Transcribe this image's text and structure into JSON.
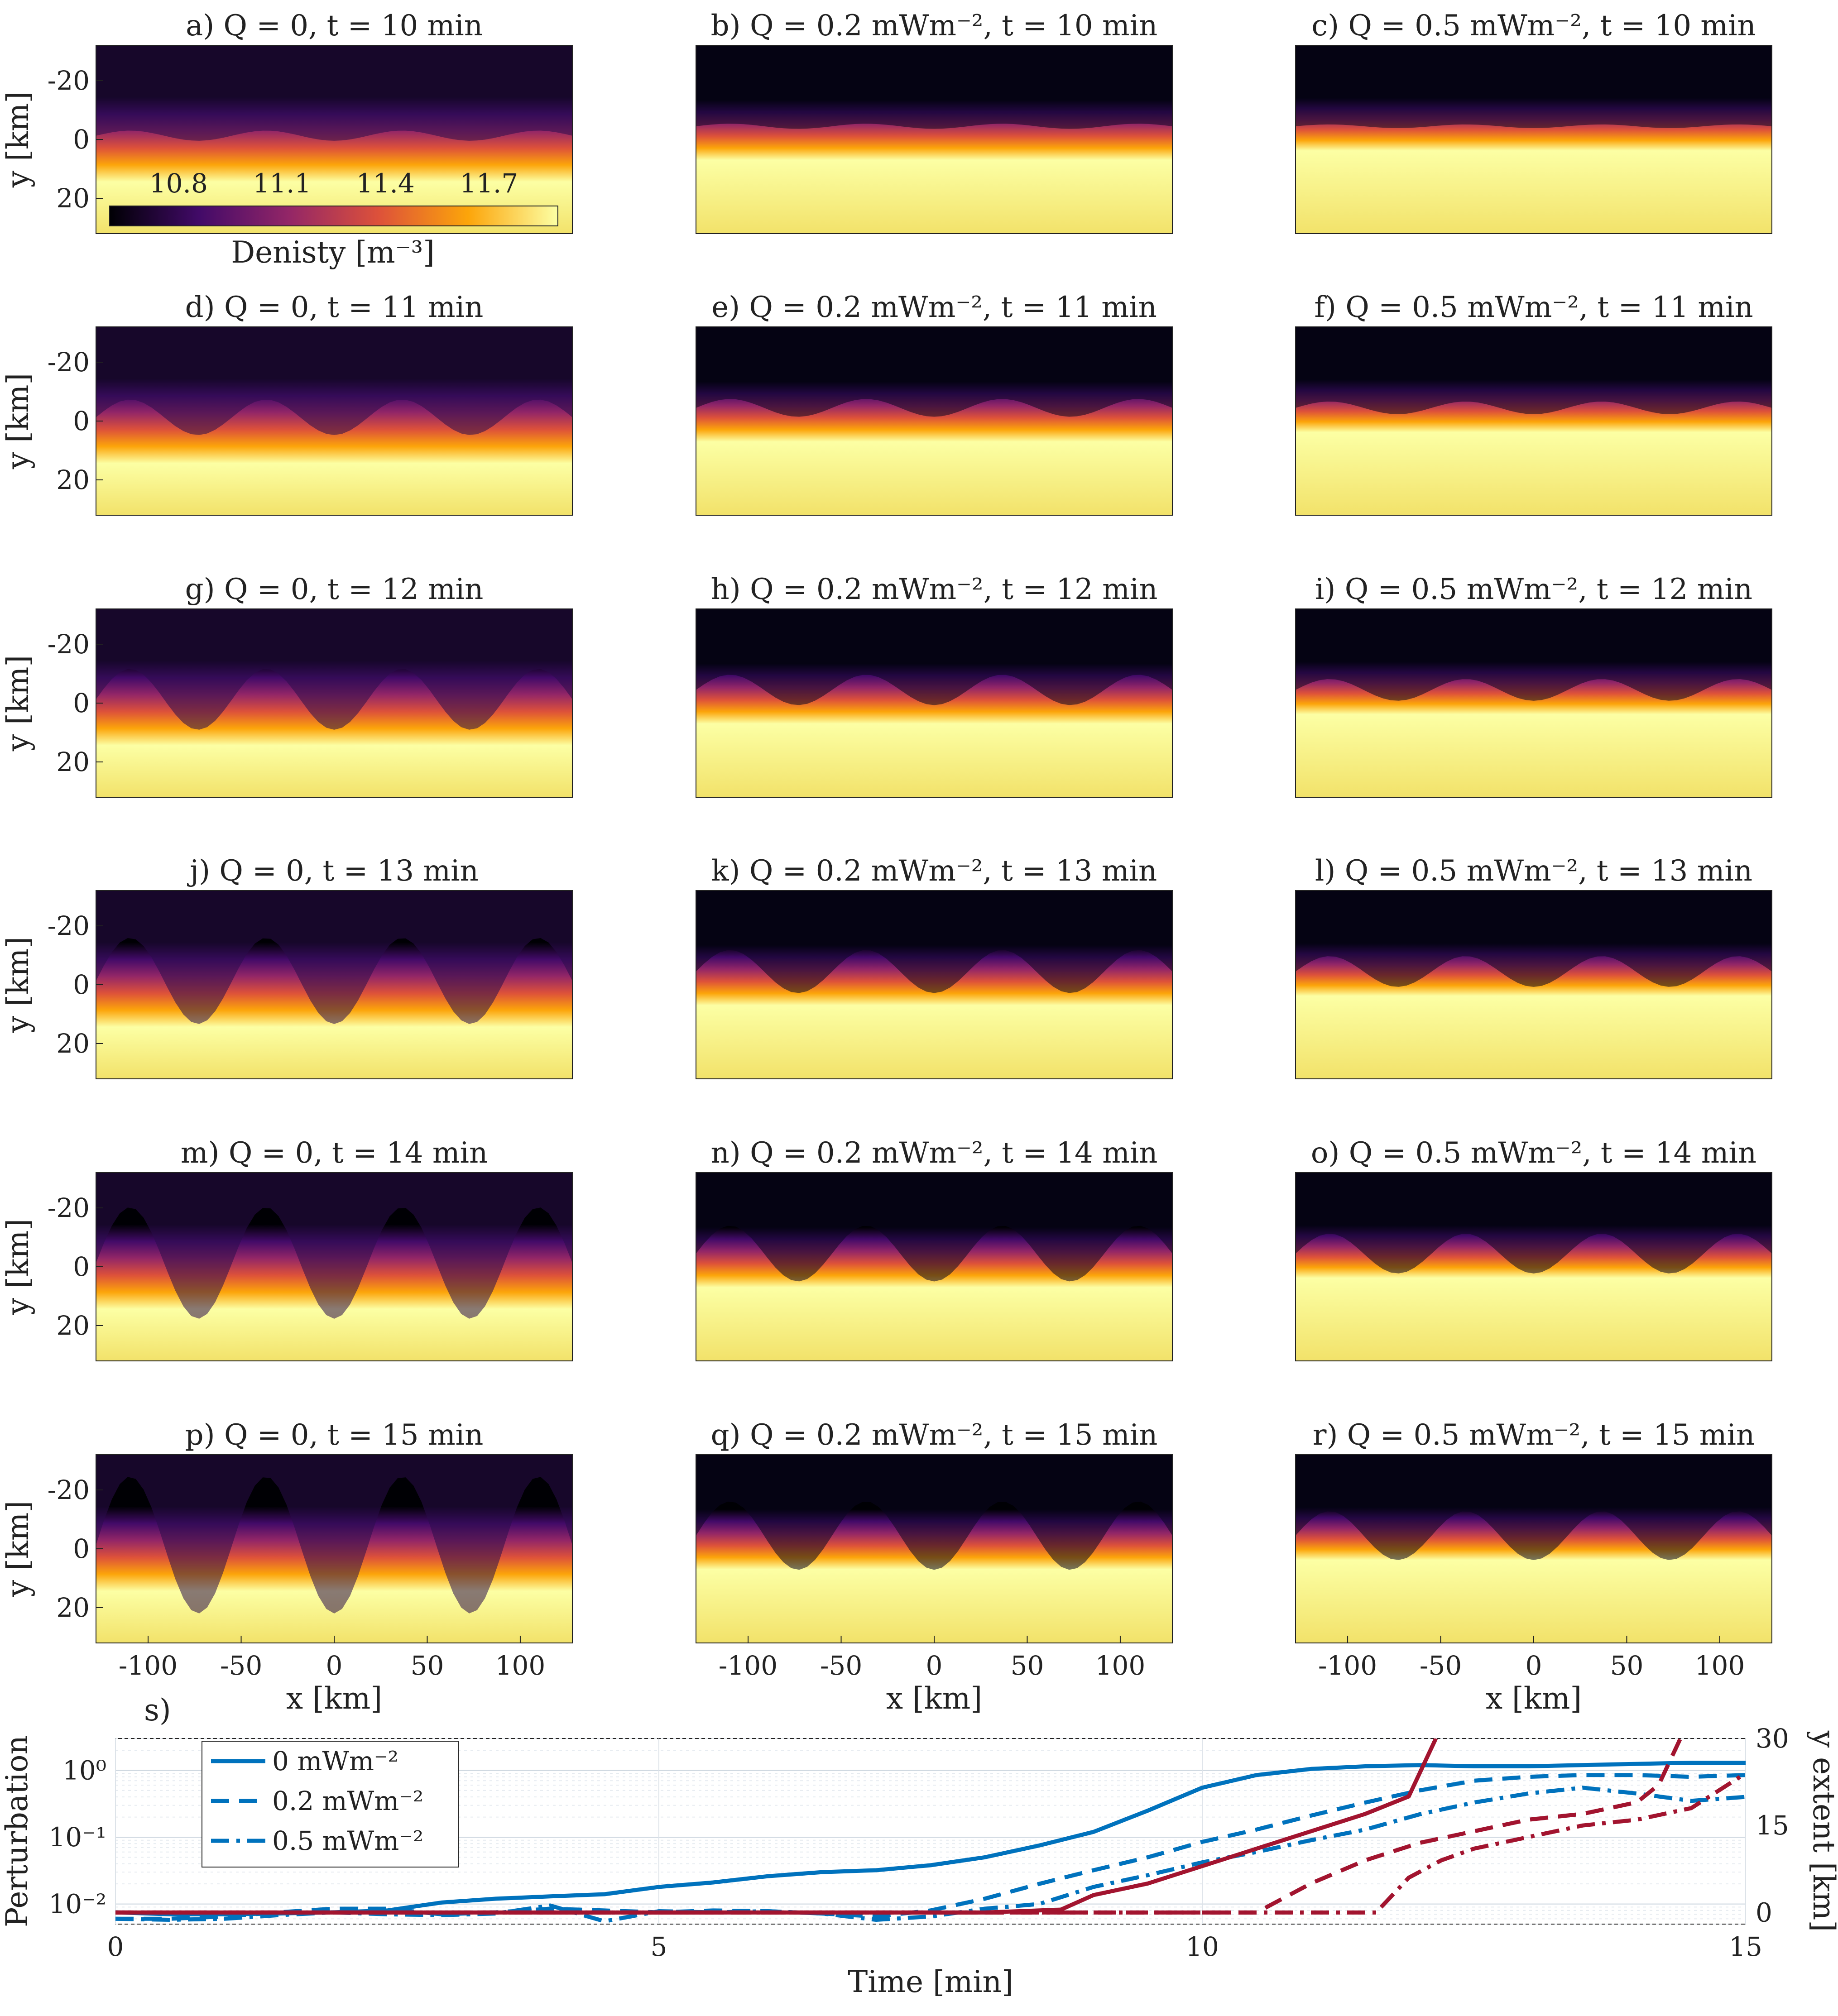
{
  "chart_data": [
    {
      "type": "heatmap",
      "grid": {
        "rows": 6,
        "cols": 3
      },
      "panels": [
        {
          "title": "a) Q = 0, t = 10 min",
          "Q_mWm2": 0,
          "t_min": 10
        },
        {
          "title": "b) Q = 0.2 mWm⁻², t = 10 min",
          "Q_mWm2": 0.2,
          "t_min": 10
        },
        {
          "title": "c) Q = 0.5 mWm⁻², t = 10 min",
          "Q_mWm2": 0.5,
          "t_min": 10
        },
        {
          "title": "d) Q = 0, t = 11 min",
          "Q_mWm2": 0,
          "t_min": 11
        },
        {
          "title": "e) Q = 0.2 mWm⁻², t = 11 min",
          "Q_mWm2": 0.2,
          "t_min": 11
        },
        {
          "title": "f) Q = 0.5 mWm⁻², t = 11 min",
          "Q_mWm2": 0.5,
          "t_min": 11
        },
        {
          "title": "g) Q = 0, t = 12 min",
          "Q_mWm2": 0,
          "t_min": 12
        },
        {
          "title": "h) Q = 0.2 mWm⁻², t = 12 min",
          "Q_mWm2": 0.2,
          "t_min": 12
        },
        {
          "title": "i) Q = 0.5 mWm⁻², t = 12 min",
          "Q_mWm2": 0.5,
          "t_min": 12
        },
        {
          "title": "j) Q = 0, t = 13 min",
          "Q_mWm2": 0,
          "t_min": 13
        },
        {
          "title": "k) Q = 0.2 mWm⁻², t = 13 min",
          "Q_mWm2": 0.2,
          "t_min": 13
        },
        {
          "title": "l) Q = 0.5 mWm⁻², t = 13 min",
          "Q_mWm2": 0.5,
          "t_min": 13
        },
        {
          "title": "m) Q = 0, t = 14 min",
          "Q_mWm2": 0,
          "t_min": 14
        },
        {
          "title": "n) Q = 0.2 mWm⁻², t = 14 min",
          "Q_mWm2": 0.2,
          "t_min": 14
        },
        {
          "title": "o) Q = 0.5 mWm⁻², t = 14 min",
          "Q_mWm2": 0.5,
          "t_min": 14
        },
        {
          "title": "p) Q = 0, t = 15 min",
          "Q_mWm2": 0,
          "t_min": 15
        },
        {
          "title": "q) Q = 0.2 mWm⁻², t = 15 min",
          "Q_mWm2": 0.2,
          "t_min": 15
        },
        {
          "title": "r) Q = 0.5 mWm⁻², t = 15 min",
          "Q_mWm2": 0.5,
          "t_min": 15
        }
      ],
      "xlabel": "x [km]",
      "ylabel": "y [km]",
      "xticks": [
        -100,
        -50,
        0,
        50,
        100
      ],
      "xlim": [
        -128,
        128
      ],
      "yticks": [
        -20,
        0,
        20
      ],
      "ylim": [
        -32,
        32
      ],
      "y_reversed": true,
      "colorbar": {
        "label": "Denisty [m⁻³]",
        "ticks": [
          10.8,
          11.1,
          11.4,
          11.7
        ],
        "range": [
          10.6,
          11.9
        ],
        "colormap": "inferno",
        "colormap_stops": [
          "#000004",
          "#420a68",
          "#932667",
          "#dd513a",
          "#fca50a",
          "#fcffa4"
        ]
      }
    },
    {
      "type": "line",
      "panel_label": "s)",
      "xlabel": "Time [min]",
      "xticks": [
        0,
        5,
        10,
        15
      ],
      "xlim": [
        0,
        15
      ],
      "ylabel_left": "Perturbation",
      "ylim_left": [
        0.005,
        3
      ],
      "yscale_left": "log",
      "yticks_left": [
        {
          "value": 0.01,
          "label": "10⁻²"
        },
        {
          "value": 0.1,
          "label": "10⁻¹"
        },
        {
          "value": 1,
          "label": "10⁰"
        }
      ],
      "ylabel_right": "y extent [km]",
      "ylim_right": [
        -2,
        30
      ],
      "yticks_right": [
        0,
        15,
        30
      ],
      "left_color": "#0072bd",
      "right_color": "#a2142f",
      "grid": true,
      "legend": {
        "placement": "top-left",
        "entries": [
          "0 mWm⁻²",
          "0.2 mWm⁻²",
          "0.5 mWm⁻²"
        ]
      },
      "series": [
        {
          "name": "0 mWm⁻²",
          "axis": "left",
          "style": "solid",
          "color": "#0072bd",
          "x": [
            0,
            0.5,
            1,
            1.5,
            2,
            2.5,
            3,
            3.5,
            4,
            4.5,
            5,
            5.5,
            6,
            6.5,
            7,
            7.5,
            8,
            8.5,
            9,
            9.5,
            10,
            10.5,
            11,
            11.5,
            12,
            12.5,
            13,
            13.5,
            14,
            14.5,
            15
          ],
          "y": [
            0.0075,
            0.007,
            0.007,
            0.0072,
            0.0075,
            0.008,
            0.0105,
            0.012,
            0.013,
            0.014,
            0.018,
            0.021,
            0.026,
            0.03,
            0.032,
            0.038,
            0.05,
            0.075,
            0.12,
            0.25,
            0.55,
            0.85,
            1.05,
            1.15,
            1.2,
            1.15,
            1.15,
            1.2,
            1.25,
            1.3,
            1.3
          ]
        },
        {
          "name": "0.2 mWm⁻²",
          "axis": "left",
          "style": "dashed",
          "color": "#0072bd",
          "x": [
            0,
            0.5,
            1,
            1.5,
            2,
            2.5,
            3,
            3.5,
            4,
            4.5,
            5,
            5.5,
            6,
            6.5,
            7,
            7.5,
            8,
            8.5,
            9,
            9.5,
            10,
            10.5,
            11,
            11.5,
            12,
            12.5,
            13,
            13.5,
            14,
            14.5,
            15
          ],
          "y": [
            0.006,
            0.006,
            0.0065,
            0.0075,
            0.0085,
            0.0085,
            0.007,
            0.0075,
            0.0085,
            0.008,
            0.0075,
            0.008,
            0.0078,
            0.0072,
            0.0065,
            0.008,
            0.012,
            0.02,
            0.032,
            0.05,
            0.085,
            0.13,
            0.21,
            0.33,
            0.5,
            0.7,
            0.8,
            0.85,
            0.85,
            0.8,
            0.85
          ]
        },
        {
          "name": "0.5 mWm⁻²",
          "axis": "left",
          "style": "dashdot",
          "color": "#0072bd",
          "x": [
            0,
            0.5,
            1,
            1.5,
            2,
            2.5,
            3,
            3.5,
            4,
            4.5,
            5,
            5.5,
            6,
            6.5,
            7,
            7.5,
            8,
            8.5,
            9,
            9.5,
            10,
            10.5,
            11,
            11.5,
            12,
            12.5,
            13,
            13.5,
            14,
            14.5,
            15
          ],
          "y": [
            0.006,
            0.0058,
            0.006,
            0.0068,
            0.0075,
            0.007,
            0.0068,
            0.0072,
            0.0095,
            0.0055,
            0.0078,
            0.0075,
            0.0078,
            0.0072,
            0.0058,
            0.0065,
            0.0085,
            0.01,
            0.018,
            0.027,
            0.042,
            0.06,
            0.09,
            0.13,
            0.22,
            0.33,
            0.45,
            0.55,
            0.45,
            0.35,
            0.4
          ]
        },
        {
          "name": "0 mWm⁻²",
          "axis": "right",
          "style": "solid",
          "color": "#a2142f",
          "x": [
            0,
            2,
            4,
            6,
            8,
            8.7,
            9,
            9.5,
            10,
            10.5,
            11,
            11.5,
            11.9,
            12.15
          ],
          "y": [
            0,
            0,
            0,
            0,
            0,
            0.5,
            3,
            5,
            8,
            11,
            14,
            17,
            20,
            30
          ]
        },
        {
          "name": "0.2 mWm⁻²",
          "axis": "right",
          "style": "dashed",
          "color": "#a2142f",
          "x": [
            0,
            4,
            6,
            8,
            10,
            10.5,
            11,
            11.5,
            12,
            12.5,
            13,
            13.5,
            14,
            14.2,
            14.4
          ],
          "y": [
            0,
            0,
            0,
            0,
            0,
            0,
            5,
            9,
            12,
            14,
            16,
            17,
            19,
            22,
            30
          ]
        },
        {
          "name": "0.5 mWm⁻²",
          "axis": "right",
          "style": "dashdot",
          "color": "#a2142f",
          "x": [
            0,
            4,
            6,
            8,
            10,
            11,
            11.6,
            11.9,
            12.2,
            12.5,
            13,
            13.5,
            14,
            14.5,
            15
          ],
          "y": [
            0,
            0,
            0,
            0,
            0,
            0,
            0,
            6,
            9,
            11,
            13,
            15,
            16,
            18,
            24
          ]
        }
      ]
    }
  ]
}
